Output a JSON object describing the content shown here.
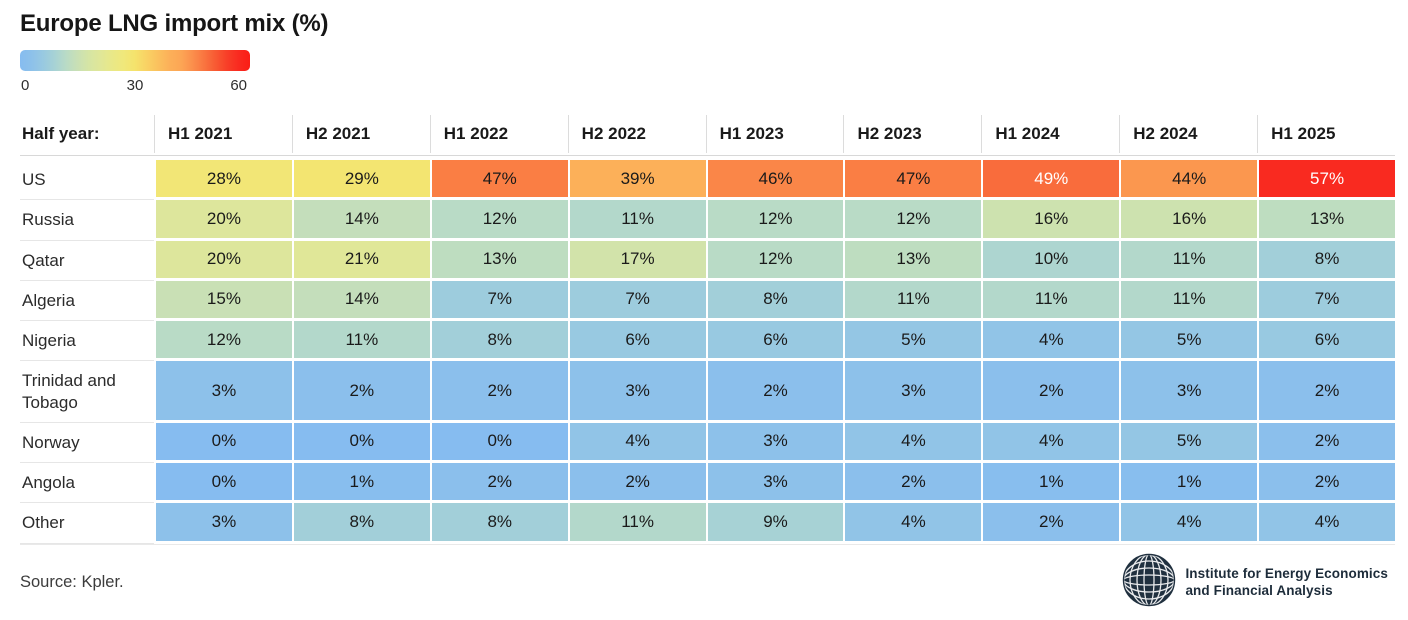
{
  "title": "Europe LNG import mix (%)",
  "legend": {
    "ticks": [
      "0",
      "30",
      "60"
    ]
  },
  "table": {
    "corner_label": "Half year:"
  },
  "footer": {
    "source": "Source: Kpler.",
    "logo_line1": "Institute for Energy Economics",
    "logo_line2": "and Financial Analysis"
  },
  "colors": {
    "title_text": "#161616",
    "cell_text_dark": "#1a1a1a",
    "cell_text_light": "#ffffff",
    "logo_navy": "#1d2c3a"
  },
  "chart_data": {
    "type": "heatmap",
    "title": "Europe LNG import mix (%)",
    "unit": "%",
    "columns": [
      "H1 2021",
      "H2 2021",
      "H1 2022",
      "H2 2022",
      "H1 2023",
      "H2 2023",
      "H1 2024",
      "H2 2024",
      "H1 2025"
    ],
    "rows": [
      {
        "label": "US",
        "values": [
          28,
          29,
          47,
          39,
          46,
          47,
          49,
          44,
          57
        ]
      },
      {
        "label": "Russia",
        "values": [
          20,
          14,
          12,
          11,
          12,
          12,
          16,
          16,
          13
        ]
      },
      {
        "label": "Qatar",
        "values": [
          20,
          21,
          13,
          17,
          12,
          13,
          10,
          11,
          8
        ]
      },
      {
        "label": "Algeria",
        "values": [
          15,
          14,
          7,
          7,
          8,
          11,
          11,
          11,
          7
        ]
      },
      {
        "label": "Nigeria",
        "values": [
          12,
          11,
          8,
          6,
          6,
          5,
          4,
          5,
          6
        ]
      },
      {
        "label": "Trinidad and Tobago",
        "values": [
          3,
          2,
          2,
          3,
          2,
          3,
          2,
          3,
          2
        ]
      },
      {
        "label": "Norway",
        "values": [
          0,
          0,
          0,
          4,
          3,
          4,
          4,
          5,
          2
        ]
      },
      {
        "label": "Angola",
        "values": [
          0,
          1,
          2,
          2,
          3,
          2,
          1,
          1,
          2
        ]
      },
      {
        "label": "Other",
        "values": [
          3,
          8,
          8,
          11,
          9,
          4,
          2,
          4,
          4
        ]
      }
    ],
    "color_domain": [
      0,
      60
    ],
    "legend_ticks": [
      0,
      30,
      60
    ],
    "white_text_threshold": 48,
    "colormap_stops": [
      {
        "v": 0,
        "c": "#86bcf0"
      },
      {
        "v": 3,
        "c": "#8dc1ea"
      },
      {
        "v": 6,
        "c": "#98c9e1"
      },
      {
        "v": 9,
        "c": "#a7d2d5"
      },
      {
        "v": 12,
        "c": "#b9dbc6"
      },
      {
        "v": 15,
        "c": "#c9e0b5"
      },
      {
        "v": 18,
        "c": "#d6e5a4"
      },
      {
        "v": 21,
        "c": "#e0e798"
      },
      {
        "v": 24,
        "c": "#e9e888"
      },
      {
        "v": 27,
        "c": "#f0e87b"
      },
      {
        "v": 30,
        "c": "#f5e36c"
      },
      {
        "v": 33,
        "c": "#f9d264"
      },
      {
        "v": 36,
        "c": "#fbc15e"
      },
      {
        "v": 39,
        "c": "#fcb059"
      },
      {
        "v": 42,
        "c": "#fca655"
      },
      {
        "v": 45,
        "c": "#fb8f4c"
      },
      {
        "v": 48,
        "c": "#f97540"
      },
      {
        "v": 51,
        "c": "#f85a33"
      },
      {
        "v": 54,
        "c": "#f83f28"
      },
      {
        "v": 57,
        "c": "#f92a20"
      },
      {
        "v": 60,
        "c": "#fa1d15"
      }
    ]
  }
}
